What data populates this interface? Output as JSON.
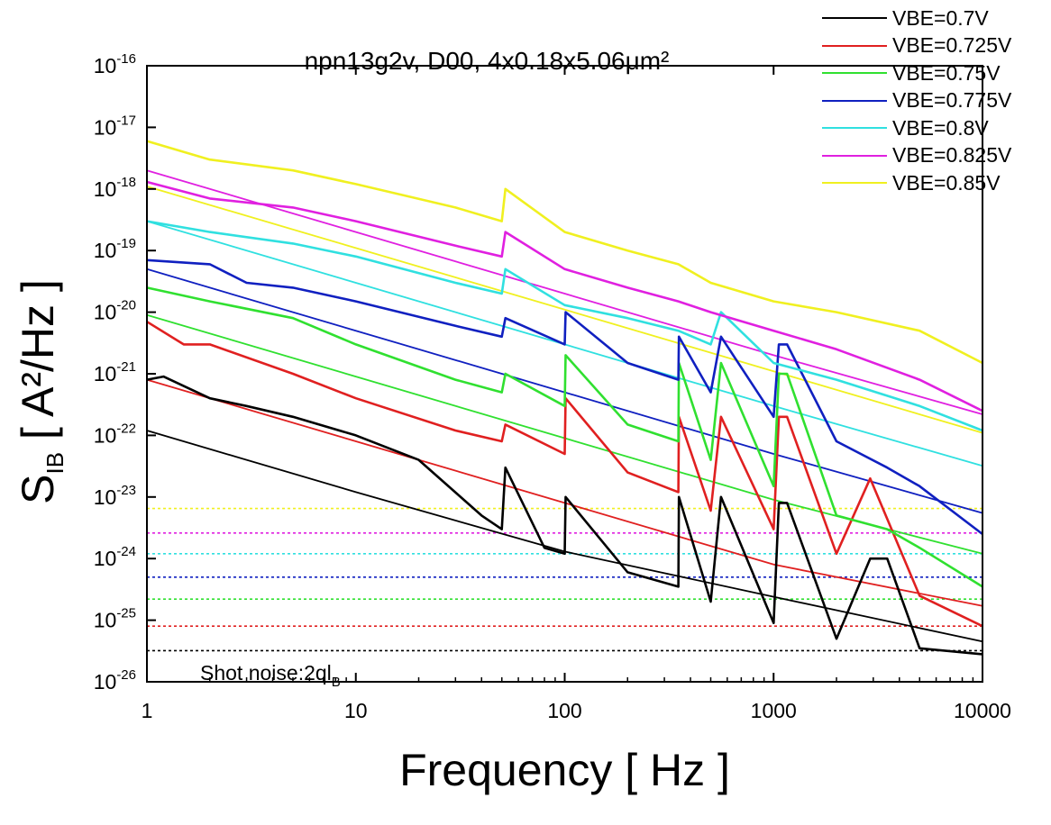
{
  "chart_data": {
    "type": "line",
    "title": "npn13g2v, D00, 4x0.18x5.06μm²",
    "xlabel": "Frequency [ Hz ]",
    "ylabel": {
      "main": "S",
      "sub": "IB",
      "rest": " [ A²/Hz ]"
    },
    "x_scale": "log",
    "y_scale": "log",
    "xlim": [
      1,
      10000
    ],
    "ylim": [
      1e-26,
      1e-16
    ],
    "x_ticks": [
      "1",
      "10",
      "100",
      "1000",
      "10000"
    ],
    "y_ticks": [
      {
        "base": "10",
        "exp": "-26"
      },
      {
        "base": "10",
        "exp": "-25"
      },
      {
        "base": "10",
        "exp": "-24"
      },
      {
        "base": "10",
        "exp": "-23"
      },
      {
        "base": "10",
        "exp": "-22"
      },
      {
        "base": "10",
        "exp": "-21"
      },
      {
        "base": "10",
        "exp": "-20"
      },
      {
        "base": "10",
        "exp": "-19"
      },
      {
        "base": "10",
        "exp": "-18"
      },
      {
        "base": "10",
        "exp": "-17"
      },
      {
        "base": "10",
        "exp": "-16"
      }
    ],
    "legend_position": "top-right, outside plot",
    "grid": false,
    "series": [
      {
        "name": "VBE=0.7V",
        "color": "#000000",
        "measured": [
          [
            1,
            8e-22
          ],
          [
            1.2,
            9e-22
          ],
          [
            2,
            4e-22
          ],
          [
            3,
            3e-22
          ],
          [
            5,
            2e-22
          ],
          [
            10,
            1e-22
          ],
          [
            20,
            4e-23
          ],
          [
            40,
            5e-24
          ],
          [
            50,
            3e-24
          ],
          [
            52,
            3e-23
          ],
          [
            80,
            1.5e-24
          ],
          [
            100,
            1.2e-24
          ],
          [
            101,
            1e-23
          ],
          [
            200,
            6e-25
          ],
          [
            350,
            3.5e-25
          ],
          [
            352,
            1e-23
          ],
          [
            500,
            2e-25
          ],
          [
            560,
            1e-23
          ],
          [
            1000,
            9e-26
          ],
          [
            1060,
            8e-24
          ],
          [
            1160,
            8e-24
          ],
          [
            2000,
            5e-26
          ],
          [
            2900,
            1e-24
          ],
          [
            3500,
            1e-24
          ],
          [
            5000,
            3.5e-26
          ],
          [
            10000,
            2.8e-26
          ]
        ],
        "fit": [
          [
            1,
            1.2e-22
          ],
          [
            10,
            1.2e-23
          ],
          [
            100,
            1.3e-24
          ],
          [
            1000,
            2.4e-25
          ],
          [
            10000,
            4.5e-26
          ]
        ],
        "shot_noise": 3.2e-26
      },
      {
        "name": "VBE=0.725V",
        "color": "#e02020",
        "measured": [
          [
            1,
            7e-21
          ],
          [
            1.5,
            3e-21
          ],
          [
            2,
            3e-21
          ],
          [
            5,
            1e-21
          ],
          [
            10,
            4e-22
          ],
          [
            30,
            1.2e-22
          ],
          [
            50,
            8e-23
          ],
          [
            52,
            1.5e-22
          ],
          [
            100,
            5e-23
          ],
          [
            101,
            4e-22
          ],
          [
            200,
            2.5e-23
          ],
          [
            350,
            1.2e-23
          ],
          [
            352,
            2e-22
          ],
          [
            500,
            6e-24
          ],
          [
            560,
            2e-22
          ],
          [
            1000,
            3e-24
          ],
          [
            1060,
            2e-22
          ],
          [
            1160,
            2e-22
          ],
          [
            2000,
            1.2e-24
          ],
          [
            2900,
            2e-23
          ],
          [
            5000,
            2.5e-25
          ],
          [
            10000,
            8e-26
          ]
        ],
        "fit": [
          [
            1,
            8e-22
          ],
          [
            10,
            8e-23
          ],
          [
            100,
            8e-24
          ],
          [
            1000,
            8e-25
          ],
          [
            10000,
            1.7e-25
          ]
        ],
        "shot_noise": 8e-26
      },
      {
        "name": "VBE=0.75V",
        "color": "#30e030",
        "measured": [
          [
            1,
            2.5e-20
          ],
          [
            2,
            1.5e-20
          ],
          [
            5,
            8e-21
          ],
          [
            10,
            3e-21
          ],
          [
            30,
            8e-22
          ],
          [
            50,
            5e-22
          ],
          [
            52,
            1e-21
          ],
          [
            100,
            3e-22
          ],
          [
            101,
            2e-21
          ],
          [
            200,
            1.5e-22
          ],
          [
            350,
            8e-23
          ],
          [
            352,
            1.5e-21
          ],
          [
            500,
            4e-23
          ],
          [
            560,
            1.5e-21
          ],
          [
            1000,
            1.5e-23
          ],
          [
            1060,
            1e-21
          ],
          [
            1160,
            1e-21
          ],
          [
            2000,
            5e-24
          ],
          [
            3500,
            3e-24
          ],
          [
            5000,
            1.5e-24
          ],
          [
            10000,
            3.5e-25
          ]
        ],
        "fit": [
          [
            1,
            9e-21
          ],
          [
            10,
            9e-22
          ],
          [
            100,
            9e-23
          ],
          [
            1000,
            9e-24
          ],
          [
            10000,
            1.2e-24
          ]
        ],
        "shot_noise": 2.2e-25
      },
      {
        "name": "VBE=0.775V",
        "color": "#1020c0",
        "measured": [
          [
            1,
            7e-20
          ],
          [
            2,
            6e-20
          ],
          [
            3,
            3e-20
          ],
          [
            5,
            2.5e-20
          ],
          [
            10,
            1.5e-20
          ],
          [
            30,
            6e-21
          ],
          [
            50,
            4e-21
          ],
          [
            52,
            8e-21
          ],
          [
            100,
            3e-21
          ],
          [
            101,
            1e-20
          ],
          [
            200,
            1.5e-21
          ],
          [
            350,
            8e-22
          ],
          [
            352,
            4e-21
          ],
          [
            500,
            5e-22
          ],
          [
            560,
            4e-21
          ],
          [
            1000,
            2e-22
          ],
          [
            1060,
            3e-21
          ],
          [
            1160,
            3e-21
          ],
          [
            2000,
            8e-23
          ],
          [
            3500,
            3e-23
          ],
          [
            5000,
            1.5e-23
          ],
          [
            10000,
            2.5e-24
          ]
        ],
        "fit": [
          [
            1,
            5e-20
          ],
          [
            10,
            5e-21
          ],
          [
            100,
            5e-22
          ],
          [
            1000,
            5e-23
          ],
          [
            10000,
            5.5e-24
          ]
        ],
        "shot_noise": 5e-25
      },
      {
        "name": "VBE=0.8V",
        "color": "#30e0e0",
        "measured": [
          [
            1,
            3e-19
          ],
          [
            2,
            2e-19
          ],
          [
            5,
            1.3e-19
          ],
          [
            10,
            8e-20
          ],
          [
            30,
            3e-20
          ],
          [
            50,
            2e-20
          ],
          [
            52,
            5e-20
          ],
          [
            100,
            1.3e-20
          ],
          [
            200,
            8e-21
          ],
          [
            350,
            5e-21
          ],
          [
            500,
            3e-21
          ],
          [
            560,
            1e-20
          ],
          [
            1000,
            1.5e-21
          ],
          [
            2000,
            8e-22
          ],
          [
            5000,
            3e-22
          ],
          [
            10000,
            1.2e-22
          ]
        ],
        "fit": [
          [
            1,
            3e-19
          ],
          [
            10,
            3e-20
          ],
          [
            100,
            3e-21
          ],
          [
            1000,
            3e-22
          ],
          [
            10000,
            3.2e-23
          ]
        ],
        "shot_noise": 1.2e-24
      },
      {
        "name": "VBE=0.825V",
        "color": "#e020e0",
        "measured": [
          [
            1,
            1.3e-18
          ],
          [
            2,
            7e-19
          ],
          [
            5,
            5e-19
          ],
          [
            10,
            3e-19
          ],
          [
            30,
            1.2e-19
          ],
          [
            50,
            8e-20
          ],
          [
            52,
            2e-19
          ],
          [
            100,
            5e-20
          ],
          [
            200,
            2.5e-20
          ],
          [
            350,
            1.5e-20
          ],
          [
            500,
            1e-20
          ],
          [
            1000,
            5e-21
          ],
          [
            2000,
            2.5e-21
          ],
          [
            5000,
            8e-22
          ],
          [
            10000,
            2.5e-22
          ]
        ],
        "fit": [
          [
            1,
            2e-18
          ],
          [
            10,
            2e-19
          ],
          [
            100,
            2e-20
          ],
          [
            1000,
            2e-21
          ],
          [
            10000,
            2.2e-22
          ]
        ],
        "shot_noise": 2.6e-24
      },
      {
        "name": "VBE=0.85V",
        "color": "#f0f020",
        "measured": [
          [
            1,
            6e-18
          ],
          [
            2,
            3e-18
          ],
          [
            5,
            2e-18
          ],
          [
            10,
            1.2e-18
          ],
          [
            30,
            5e-19
          ],
          [
            50,
            3e-19
          ],
          [
            52,
            1e-18
          ],
          [
            100,
            2e-19
          ],
          [
            200,
            1e-19
          ],
          [
            350,
            6e-20
          ],
          [
            500,
            3e-20
          ],
          [
            1000,
            1.5e-20
          ],
          [
            2000,
            1e-20
          ],
          [
            5000,
            5e-21
          ],
          [
            10000,
            1.5e-21
          ]
        ],
        "fit": [
          [
            1,
            1.1e-18
          ],
          [
            10,
            1.1e-19
          ],
          [
            100,
            1.1e-20
          ],
          [
            1000,
            1.1e-21
          ],
          [
            10000,
            1.1e-22
          ]
        ],
        "shot_noise": 6.5e-24
      }
    ],
    "annotation": {
      "text": "Shot noise:2ql",
      "sub": "B"
    }
  }
}
